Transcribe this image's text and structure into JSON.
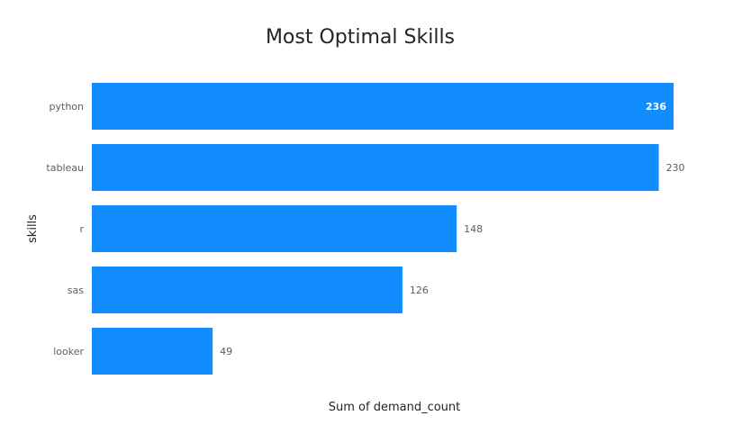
{
  "chart_data": {
    "type": "bar",
    "orientation": "horizontal",
    "title": "Most Optimal Skills",
    "xlabel": "Sum of demand_count",
    "ylabel": "skills",
    "categories": [
      "python",
      "tableau",
      "r",
      "sas",
      "looker"
    ],
    "values": [
      236,
      230,
      148,
      126,
      49
    ],
    "xlim": [
      0,
      236
    ],
    "grid": false,
    "legend": "none",
    "bar_color": "#118DFF"
  }
}
